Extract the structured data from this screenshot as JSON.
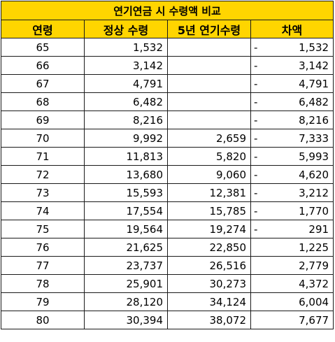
{
  "title": "연기연금 시 수령액 비교",
  "headers": [
    "연령",
    "정상 수령",
    "5년 연기수령",
    "차액"
  ],
  "rows": [
    {
      "age": "65",
      "normal": "1,532",
      "deferred": "",
      "sign": "-",
      "diff": "1,532"
    },
    {
      "age": "66",
      "normal": "3,142",
      "deferred": "",
      "sign": "-",
      "diff": "3,142"
    },
    {
      "age": "67",
      "normal": "4,791",
      "deferred": "",
      "sign": "-",
      "diff": "4,791"
    },
    {
      "age": "68",
      "normal": "6,482",
      "deferred": "",
      "sign": "-",
      "diff": "6,482"
    },
    {
      "age": "69",
      "normal": "8,216",
      "deferred": "",
      "sign": "-",
      "diff": "8,216"
    },
    {
      "age": "70",
      "normal": "9,992",
      "deferred": "2,659",
      "sign": "-",
      "diff": "7,333"
    },
    {
      "age": "71",
      "normal": "11,813",
      "deferred": "5,820",
      "sign": "-",
      "diff": "5,993"
    },
    {
      "age": "72",
      "normal": "13,680",
      "deferred": "9,060",
      "sign": "-",
      "diff": "4,620"
    },
    {
      "age": "73",
      "normal": "15,593",
      "deferred": "12,381",
      "sign": "-",
      "diff": "3,212"
    },
    {
      "age": "74",
      "normal": "17,554",
      "deferred": "15,785",
      "sign": "-",
      "diff": "1,770"
    },
    {
      "age": "75",
      "normal": "19,564",
      "deferred": "19,274",
      "sign": "-",
      "diff": "291"
    },
    {
      "age": "76",
      "normal": "21,625",
      "deferred": "22,850",
      "sign": "",
      "diff": "1,225"
    },
    {
      "age": "77",
      "normal": "23,737",
      "deferred": "26,516",
      "sign": "",
      "diff": "2,779"
    },
    {
      "age": "78",
      "normal": "25,901",
      "deferred": "30,273",
      "sign": "",
      "diff": "4,372"
    },
    {
      "age": "79",
      "normal": "28,120",
      "deferred": "34,124",
      "sign": "",
      "diff": "6,004"
    },
    {
      "age": "80",
      "normal": "30,394",
      "deferred": "38,072",
      "sign": "",
      "diff": "7,677"
    }
  ],
  "colors": {
    "header_bg": "#ffd500",
    "border": "#1a1a1a"
  }
}
